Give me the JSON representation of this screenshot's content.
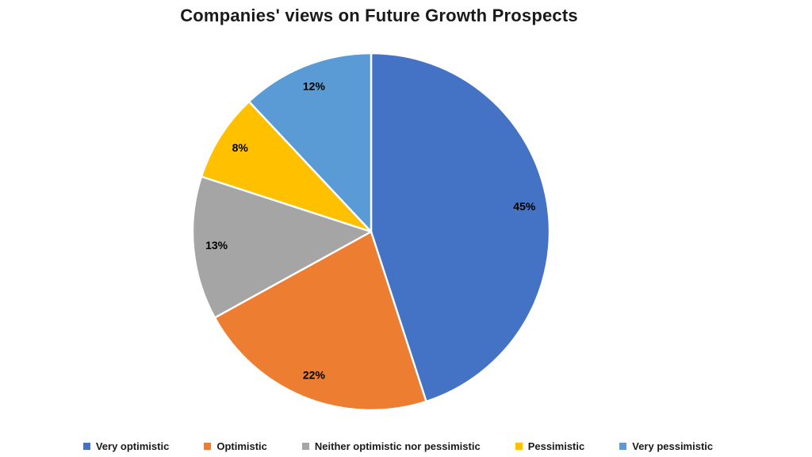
{
  "chart_data": {
    "type": "pie",
    "title": "Companies' views on Future Growth Prospects",
    "categories": [
      "Very optimistic",
      "Optimistic",
      "Neither optimistic nor pessimistic",
      "Pessimistic",
      "Very pessimistic"
    ],
    "values": [
      45,
      22,
      13,
      8,
      12
    ],
    "labels": [
      "45%",
      "22%",
      "13%",
      "8%",
      "12%"
    ],
    "colors": [
      "#4472C4",
      "#ED7D31",
      "#A5A5A5",
      "#FFC000",
      "#5B9BD5"
    ],
    "label_color": "#000000",
    "separator_color": "#ffffff",
    "start_angle_deg": 0,
    "direction": "clockwise",
    "legend_position": "bottom",
    "background": "#ffffff"
  }
}
